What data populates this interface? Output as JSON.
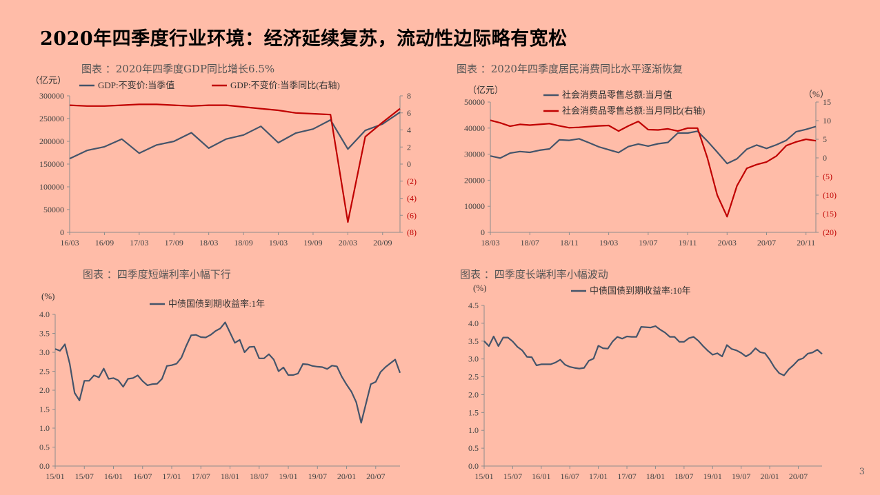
{
  "title": "2020年四季度行业环境：经济延续复苏，流动性边际略有宽松",
  "page_number": "3",
  "colors": {
    "blue": "#44546A",
    "red": "#C00000",
    "background": "#FFBCA8"
  },
  "chart_data": [
    {
      "type": "line",
      "caption": "图表 ：2020年四季度GDP同比增长6.5%",
      "y_unit_left": "（亿元）",
      "x": [
        "2016-03",
        "2016-06",
        "2016-09",
        "2016-12",
        "2017-03",
        "2017-06",
        "2017-09",
        "2017-12",
        "2018-03",
        "2018-06",
        "2018-09",
        "2018-12",
        "2019-03",
        "2019-06",
        "2019-09",
        "2019-12",
        "2020-03",
        "2020-06",
        "2020-09",
        "2020-12"
      ],
      "xticks": [
        "16/03",
        "16/09",
        "17/03",
        "17/09",
        "18/03",
        "18/09",
        "19/03",
        "19/09",
        "20/03",
        "20/09"
      ],
      "ylim_left": [
        0,
        300000
      ],
      "yticks_left": [
        "0",
        "50000",
        "100000",
        "150000",
        "200000",
        "250000",
        "300000"
      ],
      "ylim_right": [
        -8,
        8
      ],
      "yticks_right": [
        "(8)",
        "(6)",
        "(4)",
        "(2)",
        "0",
        "2",
        "4",
        "6",
        "8"
      ],
      "series": [
        {
          "name": "GDP:不变价:当季值",
          "axis": "left",
          "color": "#44546A",
          "values": [
            162000,
            180000,
            188000,
            205000,
            174000,
            192000,
            200000,
            219000,
            185000,
            205000,
            214000,
            233000,
            197000,
            218000,
            227000,
            247000,
            183000,
            224000,
            238000,
            264000
          ]
        },
        {
          "name": "GDP:不变价:当季同比(右轴)",
          "axis": "right",
          "color": "#C00000",
          "values": [
            6.9,
            6.8,
            6.8,
            6.9,
            7.0,
            7.0,
            6.9,
            6.8,
            6.9,
            6.9,
            6.7,
            6.5,
            6.3,
            6.0,
            5.9,
            5.8,
            -6.8,
            3.2,
            4.9,
            6.5
          ]
        }
      ]
    },
    {
      "type": "line",
      "caption": "图表 ：2020年四季度居民消费同比水平逐渐恢复",
      "y_unit_left": "（亿元）",
      "y_unit_right": "（%）",
      "x": [
        "2018-03",
        "2018-04",
        "2018-05",
        "2018-06",
        "2018-07",
        "2018-08",
        "2018-09",
        "2018-10",
        "2018-11",
        "2018-12",
        "2019-01",
        "2019-02",
        "2019-03",
        "2019-04",
        "2019-05",
        "2019-06",
        "2019-07",
        "2019-08",
        "2019-09",
        "2019-10",
        "2019-11",
        "2019-12",
        "2020-01",
        "2020-02",
        "2020-03",
        "2020-04",
        "2020-05",
        "2020-06",
        "2020-07",
        "2020-08",
        "2020-09",
        "2020-10",
        "2020-11",
        "2020-12"
      ],
      "xticks": [
        "18/03",
        "18/07",
        "18/11",
        "19/03",
        "19/07",
        "19/11",
        "20/03",
        "20/07",
        "20/11"
      ],
      "ylim_left": [
        0,
        50000
      ],
      "yticks_left": [
        "0",
        "10000",
        "20000",
        "30000",
        "40000",
        "50000"
      ],
      "ylim_right": [
        -20,
        15
      ],
      "yticks_right": [
        "(20)",
        "(15)",
        "(10)",
        "(5)",
        "0",
        "5",
        "10",
        "15"
      ],
      "series": [
        {
          "name": "社会消费品零售总额:当月值",
          "axis": "left",
          "color": "#44546A",
          "values": [
            29300,
            28500,
            30400,
            31000,
            30700,
            31500,
            32000,
            35500,
            35300,
            35900,
            34400,
            32800,
            31700,
            30600,
            32900,
            33900,
            33100,
            34000,
            34500,
            38100,
            38100,
            38800,
            35000,
            30800,
            26400,
            28200,
            31900,
            33500,
            32200,
            33600,
            35300,
            38600,
            39500,
            40600
          ]
        },
        {
          "name": "社会消费品零售总额:当月同比(右轴)",
          "axis": "right",
          "color": "#C00000",
          "values": [
            10.1,
            9.4,
            8.5,
            9.0,
            8.8,
            9.0,
            9.2,
            8.6,
            8.1,
            8.2,
            8.4,
            8.6,
            8.7,
            7.2,
            8.6,
            9.8,
            7.6,
            7.5,
            7.8,
            7.2,
            8.0,
            8.0,
            0.0,
            -10.0,
            -15.8,
            -7.5,
            -2.8,
            -1.8,
            -1.1,
            0.5,
            3.3,
            4.3,
            5.0,
            4.6
          ]
        }
      ]
    },
    {
      "type": "line",
      "caption": "图表 ：四季度短端利率小幅下行",
      "y_unit_left": "(%)",
      "x": [
        "2015-01",
        "2015-02",
        "2015-03",
        "2015-04",
        "2015-05",
        "2015-06",
        "2015-07",
        "2015-08",
        "2015-09",
        "2015-10",
        "2015-11",
        "2015-12",
        "2016-01",
        "2016-02",
        "2016-03",
        "2016-04",
        "2016-05",
        "2016-06",
        "2016-07",
        "2016-08",
        "2016-09",
        "2016-10",
        "2016-11",
        "2016-12",
        "2017-01",
        "2017-02",
        "2017-03",
        "2017-04",
        "2017-05",
        "2017-06",
        "2017-07",
        "2017-08",
        "2017-09",
        "2017-10",
        "2017-11",
        "2017-12",
        "2018-01",
        "2018-02",
        "2018-03",
        "2018-04",
        "2018-05",
        "2018-06",
        "2018-07",
        "2018-08",
        "2018-09",
        "2018-10",
        "2018-11",
        "2018-12",
        "2019-01",
        "2019-02",
        "2019-03",
        "2019-04",
        "2019-05",
        "2019-06",
        "2019-07",
        "2019-08",
        "2019-09",
        "2019-10",
        "2019-11",
        "2019-12",
        "2020-01",
        "2020-02",
        "2020-03",
        "2020-04",
        "2020-05",
        "2020-06",
        "2020-07",
        "2020-08",
        "2020-09",
        "2020-10",
        "2020-11",
        "2020-12"
      ],
      "xticks": [
        "15/01",
        "15/07",
        "16/01",
        "16/07",
        "17/01",
        "17/07",
        "18/01",
        "18/07",
        "19/01",
        "19/07",
        "20/01",
        "20/07"
      ],
      "ylim_left": [
        0,
        4
      ],
      "yticks_left": [
        "0.0",
        "0.5",
        "1.0",
        "1.5",
        "2.0",
        "2.5",
        "3.0",
        "3.5",
        "4.0"
      ],
      "series": [
        {
          "name": "中债国债到期收益率:1年",
          "axis": "left",
          "color": "#44546A",
          "values": [
            3.09,
            3.04,
            3.21,
            2.7,
            1.93,
            1.73,
            2.25,
            2.25,
            2.39,
            2.34,
            2.57,
            2.3,
            2.32,
            2.26,
            2.09,
            2.3,
            2.32,
            2.39,
            2.24,
            2.13,
            2.16,
            2.17,
            2.3,
            2.64,
            2.66,
            2.7,
            2.86,
            3.17,
            3.45,
            3.46,
            3.4,
            3.39,
            3.46,
            3.56,
            3.63,
            3.79,
            3.52,
            3.25,
            3.33,
            3.0,
            3.14,
            3.15,
            2.84,
            2.84,
            2.95,
            2.81,
            2.5,
            2.6,
            2.4,
            2.4,
            2.44,
            2.69,
            2.68,
            2.64,
            2.62,
            2.61,
            2.56,
            2.65,
            2.63,
            2.36,
            2.15,
            1.96,
            1.68,
            1.14,
            1.65,
            2.16,
            2.22,
            2.48,
            2.61,
            2.71,
            2.81,
            2.46
          ]
        }
      ]
    },
    {
      "type": "line",
      "caption": "图表 ：四季度长端利率小幅波动",
      "y_unit_left": "(%)",
      "x": [
        "2015-01",
        "2015-02",
        "2015-03",
        "2015-04",
        "2015-05",
        "2015-06",
        "2015-07",
        "2015-08",
        "2015-09",
        "2015-10",
        "2015-11",
        "2015-12",
        "2016-01",
        "2016-02",
        "2016-03",
        "2016-04",
        "2016-05",
        "2016-06",
        "2016-07",
        "2016-08",
        "2016-09",
        "2016-10",
        "2016-11",
        "2016-12",
        "2017-01",
        "2017-02",
        "2017-03",
        "2017-04",
        "2017-05",
        "2017-06",
        "2017-07",
        "2017-08",
        "2017-09",
        "2017-10",
        "2017-11",
        "2017-12",
        "2018-01",
        "2018-02",
        "2018-03",
        "2018-04",
        "2018-05",
        "2018-06",
        "2018-07",
        "2018-08",
        "2018-09",
        "2018-10",
        "2018-11",
        "2018-12",
        "2019-01",
        "2019-02",
        "2019-03",
        "2019-04",
        "2019-05",
        "2019-06",
        "2019-07",
        "2019-08",
        "2019-09",
        "2019-10",
        "2019-11",
        "2019-12",
        "2020-01",
        "2020-02",
        "2020-03",
        "2020-04",
        "2020-05",
        "2020-06",
        "2020-07",
        "2020-08",
        "2020-09",
        "2020-10",
        "2020-11",
        "2020-12"
      ],
      "xticks": [
        "15/01",
        "15/07",
        "16/01",
        "16/07",
        "17/01",
        "17/07",
        "18/01",
        "18/07",
        "19/01",
        "19/07",
        "20/01",
        "20/07"
      ],
      "ylim_left": [
        0,
        4.5
      ],
      "yticks_left": [
        "0.0",
        "0.5",
        "1.0",
        "1.5",
        "2.0",
        "2.5",
        "3.0",
        "3.5",
        "4.0",
        "4.5"
      ],
      "series": [
        {
          "name": "中债国债到期收益率:10年",
          "axis": "left",
          "color": "#44546A",
          "values": [
            3.5,
            3.36,
            3.63,
            3.36,
            3.6,
            3.6,
            3.49,
            3.34,
            3.24,
            3.06,
            3.05,
            2.82,
            2.85,
            2.85,
            2.85,
            2.9,
            2.98,
            2.84,
            2.78,
            2.75,
            2.73,
            2.75,
            2.95,
            3.01,
            3.37,
            3.3,
            3.29,
            3.49,
            3.62,
            3.57,
            3.63,
            3.62,
            3.62,
            3.9,
            3.89,
            3.88,
            3.92,
            3.82,
            3.74,
            3.62,
            3.62,
            3.48,
            3.48,
            3.58,
            3.62,
            3.51,
            3.36,
            3.23,
            3.12,
            3.16,
            3.07,
            3.39,
            3.28,
            3.24,
            3.17,
            3.07,
            3.15,
            3.3,
            3.19,
            3.16,
            2.98,
            2.76,
            2.6,
            2.54,
            2.71,
            2.83,
            2.97,
            3.02,
            3.15,
            3.18,
            3.26,
            3.14
          ]
        }
      ]
    }
  ]
}
